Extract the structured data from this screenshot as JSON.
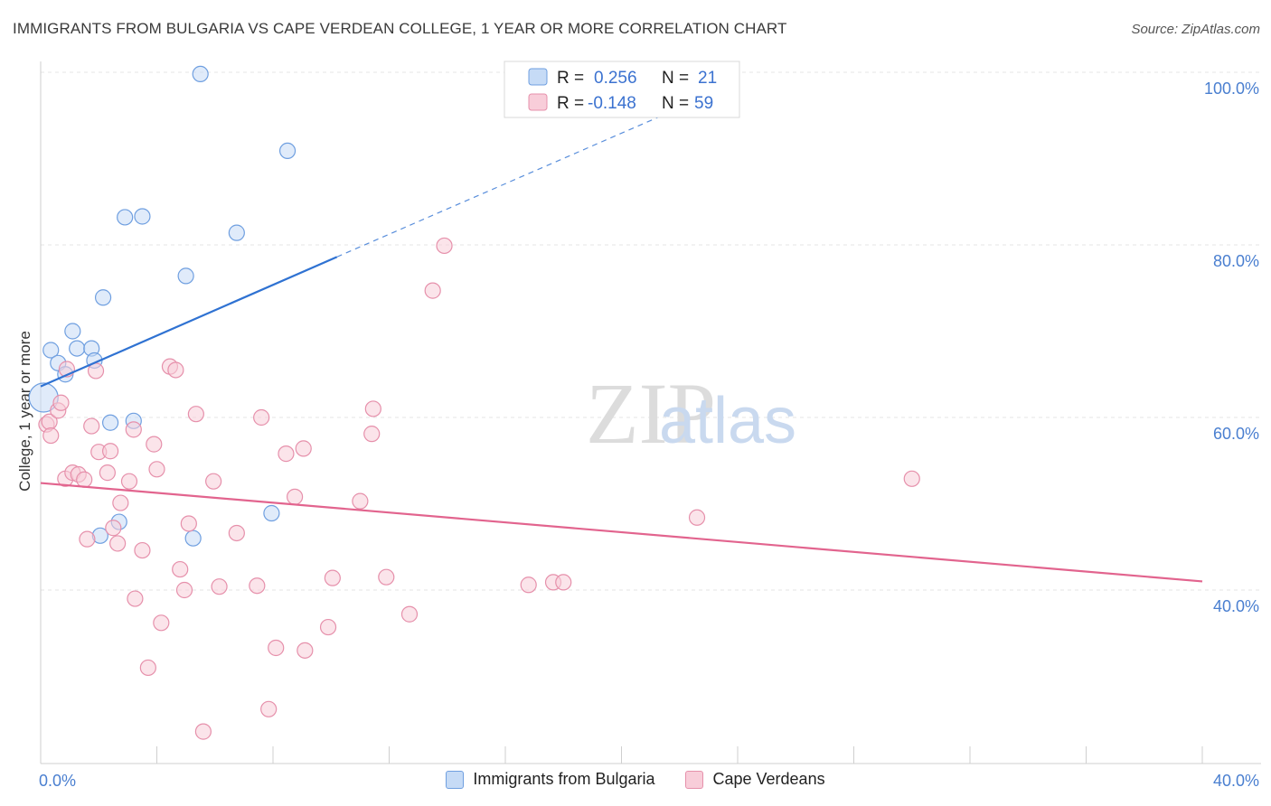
{
  "title": "IMMIGRANTS FROM BULGARIA VS CAPE VERDEAN COLLEGE, 1 YEAR OR MORE CORRELATION CHART",
  "source": "Source: ZipAtlas.com",
  "watermark": {
    "zip": "ZIP",
    "atlas": "atlas"
  },
  "chart_data": {
    "type": "scatter",
    "title": "IMMIGRANTS FROM BULGARIA VS CAPE VERDEAN COLLEGE, 1 YEAR OR MORE CORRELATION CHART",
    "xlabel": "",
    "ylabel": "College, 1 year or more",
    "xlim": [
      0,
      40
    ],
    "ylim": [
      20,
      102
    ],
    "x_tick_labels": [
      {
        "value": 0,
        "label": "0.0%"
      },
      {
        "value": 40,
        "label": "40.0%"
      }
    ],
    "y_tick_labels": [
      {
        "value": 100,
        "label": "100.0%"
      },
      {
        "value": 80,
        "label": "80.0%"
      },
      {
        "value": 60,
        "label": "60.0%"
      },
      {
        "value": 40,
        "label": "40.0%"
      }
    ],
    "legend_stats": [
      {
        "r_label": "R =",
        "r_value": "0.256",
        "n_label": "N =",
        "n_value": "21"
      },
      {
        "r_label": "R =",
        "r_value": "-0.148",
        "n_label": "N =",
        "n_value": "59"
      }
    ],
    "series": [
      {
        "name": "Immigrants from Bulgaria",
        "color": "#6f9fe0",
        "fill": "#c6dbf6",
        "trend": {
          "x1": 0,
          "y1": 63.6,
          "x2": 10.2,
          "y2": 78.6,
          "dash_to_x": 22.5,
          "dash_to_y": 96.6,
          "color": "#2f72d2"
        },
        "points": [
          [
            0.1,
            62.3
          ],
          [
            0.35,
            67.8
          ],
          [
            0.6,
            66.3
          ],
          [
            0.85,
            65.0
          ],
          [
            1.1,
            70.0
          ],
          [
            1.25,
            68.0
          ],
          [
            1.75,
            68.0
          ],
          [
            1.85,
            66.6
          ],
          [
            2.15,
            73.9
          ],
          [
            2.4,
            59.4
          ],
          [
            2.7,
            47.9
          ],
          [
            2.05,
            46.3
          ],
          [
            2.9,
            83.2
          ],
          [
            3.2,
            59.6
          ],
          [
            3.5,
            83.3
          ],
          [
            5.0,
            76.4
          ],
          [
            5.25,
            46.0
          ],
          [
            5.5,
            99.8
          ],
          [
            6.75,
            81.4
          ],
          [
            7.95,
            48.9
          ],
          [
            8.5,
            90.9
          ]
        ]
      },
      {
        "name": "Cape Verdeans",
        "color": "#e690ab",
        "fill": "#f8cdd9",
        "trend": {
          "x1": 0,
          "y1": 52.4,
          "x2": 40,
          "y2": 41.0,
          "color": "#e2648e"
        },
        "points": [
          [
            0.2,
            59.2
          ],
          [
            0.3,
            59.5
          ],
          [
            0.35,
            57.9
          ],
          [
            0.6,
            60.8
          ],
          [
            0.7,
            61.7
          ],
          [
            0.9,
            65.6
          ],
          [
            0.85,
            52.9
          ],
          [
            1.1,
            53.6
          ],
          [
            1.3,
            53.4
          ],
          [
            1.5,
            52.8
          ],
          [
            1.6,
            45.9
          ],
          [
            1.75,
            59.0
          ],
          [
            1.9,
            65.4
          ],
          [
            2.0,
            56.0
          ],
          [
            2.3,
            53.6
          ],
          [
            2.4,
            56.1
          ],
          [
            2.5,
            47.2
          ],
          [
            2.65,
            45.4
          ],
          [
            2.75,
            50.1
          ],
          [
            3.05,
            52.6
          ],
          [
            3.2,
            58.6
          ],
          [
            3.25,
            39.0
          ],
          [
            3.5,
            44.6
          ],
          [
            3.7,
            31.0
          ],
          [
            3.9,
            56.9
          ],
          [
            4.0,
            54.0
          ],
          [
            4.15,
            36.2
          ],
          [
            4.45,
            65.9
          ],
          [
            4.65,
            65.5
          ],
          [
            4.8,
            42.4
          ],
          [
            4.95,
            40.0
          ],
          [
            5.1,
            47.7
          ],
          [
            5.35,
            60.4
          ],
          [
            5.6,
            23.6
          ],
          [
            5.95,
            52.6
          ],
          [
            6.15,
            40.4
          ],
          [
            6.75,
            46.6
          ],
          [
            7.45,
            40.5
          ],
          [
            7.6,
            60.0
          ],
          [
            7.85,
            26.2
          ],
          [
            8.1,
            33.3
          ],
          [
            8.45,
            55.8
          ],
          [
            8.75,
            50.8
          ],
          [
            9.05,
            56.4
          ],
          [
            9.1,
            33.0
          ],
          [
            9.9,
            35.7
          ],
          [
            10.05,
            41.4
          ],
          [
            11.0,
            50.3
          ],
          [
            11.4,
            58.1
          ],
          [
            11.45,
            61.0
          ],
          [
            11.9,
            41.5
          ],
          [
            12.7,
            37.2
          ],
          [
            13.5,
            74.7
          ],
          [
            13.9,
            79.9
          ],
          [
            16.8,
            40.6
          ],
          [
            17.65,
            40.9
          ],
          [
            18.0,
            40.9
          ],
          [
            22.6,
            48.4
          ],
          [
            30.0,
            52.9
          ]
        ]
      }
    ]
  }
}
